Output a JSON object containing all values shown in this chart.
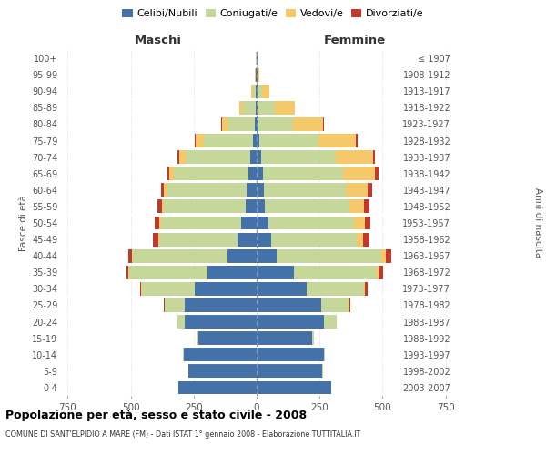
{
  "age_groups": [
    "0-4",
    "5-9",
    "10-14",
    "15-19",
    "20-24",
    "25-29",
    "30-34",
    "35-39",
    "40-44",
    "45-49",
    "50-54",
    "55-59",
    "60-64",
    "65-69",
    "70-74",
    "75-79",
    "80-84",
    "85-89",
    "90-94",
    "95-99",
    "100+"
  ],
  "birth_years": [
    "2003-2007",
    "1998-2002",
    "1993-1997",
    "1988-1992",
    "1983-1987",
    "1978-1982",
    "1973-1977",
    "1968-1972",
    "1963-1967",
    "1958-1962",
    "1953-1957",
    "1948-1952",
    "1943-1947",
    "1938-1942",
    "1933-1937",
    "1928-1932",
    "1923-1927",
    "1918-1922",
    "1913-1917",
    "1908-1912",
    "≤ 1907"
  ],
  "male": {
    "celibe": [
      310,
      270,
      290,
      230,
      285,
      285,
      245,
      195,
      115,
      75,
      60,
      42,
      38,
      32,
      25,
      15,
      8,
      5,
      2,
      2,
      1
    ],
    "coniugato": [
      2,
      2,
      2,
      5,
      28,
      80,
      210,
      310,
      375,
      310,
      320,
      325,
      315,
      295,
      255,
      195,
      105,
      48,
      14,
      3,
      1
    ],
    "vedovo": [
      0,
      0,
      0,
      0,
      0,
      1,
      2,
      3,
      4,
      6,
      8,
      10,
      14,
      20,
      28,
      32,
      25,
      15,
      5,
      1,
      0
    ],
    "divorziato": [
      0,
      0,
      0,
      0,
      1,
      2,
      5,
      10,
      15,
      20,
      15,
      15,
      12,
      8,
      5,
      3,
      2,
      1,
      0,
      0,
      0
    ]
  },
  "female": {
    "nubile": [
      295,
      260,
      268,
      220,
      268,
      258,
      198,
      148,
      78,
      58,
      48,
      32,
      28,
      25,
      18,
      12,
      8,
      5,
      3,
      2,
      2
    ],
    "coniugata": [
      2,
      2,
      2,
      8,
      48,
      108,
      228,
      328,
      418,
      338,
      340,
      335,
      325,
      318,
      295,
      235,
      138,
      68,
      18,
      3,
      1
    ],
    "vedova": [
      0,
      0,
      0,
      0,
      1,
      2,
      4,
      8,
      15,
      25,
      40,
      58,
      88,
      128,
      148,
      148,
      118,
      78,
      28,
      5,
      1
    ],
    "divorziata": [
      0,
      0,
      0,
      0,
      2,
      4,
      10,
      18,
      25,
      25,
      25,
      22,
      18,
      12,
      8,
      5,
      3,
      2,
      1,
      0,
      0
    ]
  },
  "colors": {
    "celibe": "#4472a8",
    "coniugato": "#c5d89a",
    "vedovo": "#f5c96a",
    "divorziato": "#c0392b"
  },
  "xlim": 780,
  "xticks": [
    -750,
    -500,
    -250,
    0,
    250,
    500,
    750
  ],
  "xlabels": [
    "750",
    "500",
    "250",
    "0",
    "250",
    "500",
    "750"
  ],
  "maschi_label": "Maschi",
  "femmine_label": "Femmine",
  "ylabel_left": "Fasce di età",
  "ylabel_right": "Anni di nascita",
  "title": "Popolazione per età, sesso e stato civile - 2008",
  "subtitle": "COMUNE DI SANT'ELPIDIO A MARE (FM) - Dati ISTAT 1° gennaio 2008 - Elaborazione TUTTITALIA.IT",
  "legend_labels": [
    "Celibi/Nubili",
    "Coniugati/e",
    "Vedovi/e",
    "Divorziati/e"
  ]
}
